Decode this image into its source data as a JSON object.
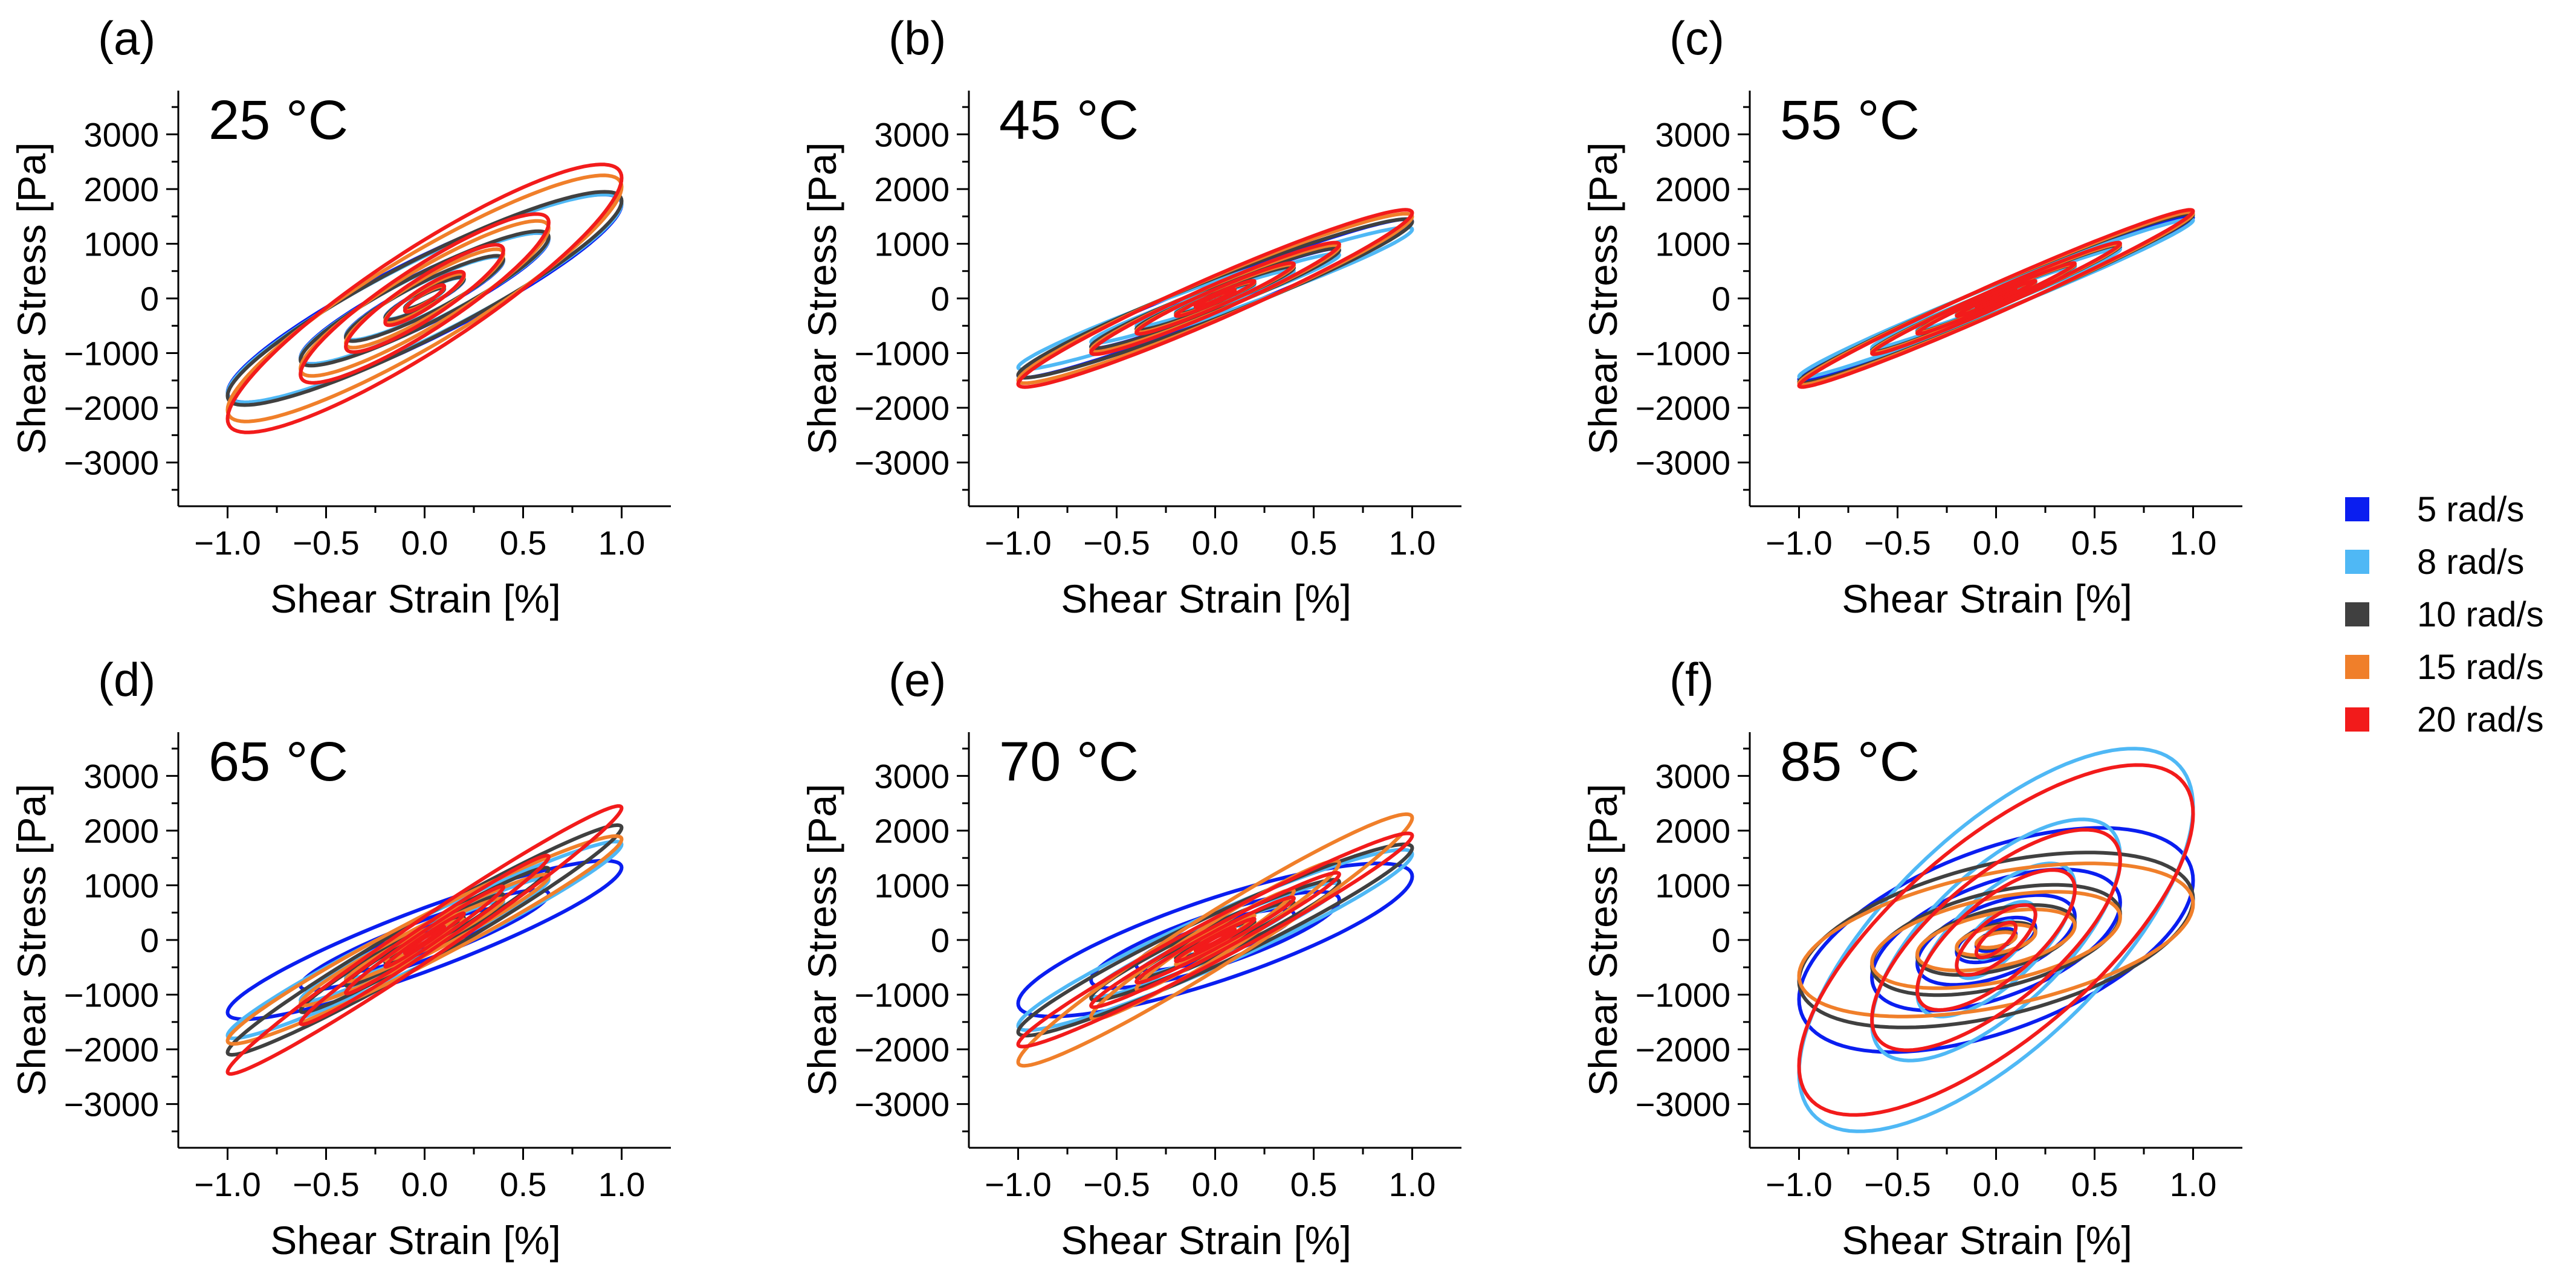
{
  "legend": {
    "items": [
      {
        "label": "5 rad/s",
        "color": "#0a1ef0"
      },
      {
        "label": "8 rad/s",
        "color": "#4fb8f5"
      },
      {
        "label": "10 rad/s",
        "color": "#404040"
      },
      {
        "label": "15 rad/s",
        "color": "#f07f2a"
      },
      {
        "label": "20 rad/s",
        "color": "#f21b1b"
      }
    ]
  },
  "chart_data": [
    {
      "type": "line",
      "panel": "(a)",
      "title": "25 °C",
      "xlabel": "Shear Strain [%]",
      "ylabel": "Shear Stress [Pa]",
      "xlim": [
        -1.25,
        1.25
      ],
      "ylim": [
        -3800,
        3800
      ],
      "xticks": [
        "-1.0",
        "-0.5",
        "0.0",
        "0.5",
        "1.0"
      ],
      "yticks": [
        "3000",
        "2000",
        "1000",
        "0",
        "-1000",
        "-2000",
        "-3000"
      ],
      "amplitudes": [
        0.1,
        0.2,
        0.4,
        0.63,
        1.0
      ],
      "series": [
        {
          "name": "5 rad/s",
          "peak_stress": 1900,
          "phase_deg": 25
        },
        {
          "name": "8 rad/s",
          "peak_stress": 1900,
          "phase_deg": 24
        },
        {
          "name": "10 rad/s",
          "peak_stress": 1950,
          "phase_deg": 24
        },
        {
          "name": "15 rad/s",
          "peak_stress": 2250,
          "phase_deg": 25
        },
        {
          "name": "20 rad/s",
          "peak_stress": 2450,
          "phase_deg": 26
        }
      ]
    },
    {
      "type": "line",
      "panel": "(b)",
      "title": "45 °C",
      "xlabel": "Shear Strain [%]",
      "ylabel": "Shear Stress [Pa]",
      "xlim": [
        -1.25,
        1.25
      ],
      "ylim": [
        -3800,
        3800
      ],
      "xticks": [
        "-1.0",
        "-0.5",
        "0.0",
        "0.5",
        "1.0"
      ],
      "yticks": [
        "3000",
        "2000",
        "1000",
        "0",
        "-1000",
        "-2000",
        "-3000"
      ],
      "amplitudes": [
        0.1,
        0.2,
        0.4,
        0.63,
        1.0
      ],
      "series": [
        {
          "name": "5 rad/s",
          "peak_stress": 1450,
          "phase_deg": 14
        },
        {
          "name": "8 rad/s",
          "peak_stress": 1300,
          "phase_deg": 14
        },
        {
          "name": "10 rad/s",
          "peak_stress": 1450,
          "phase_deg": 15
        },
        {
          "name": "15 rad/s",
          "peak_stress": 1550,
          "phase_deg": 15
        },
        {
          "name": "20 rad/s",
          "peak_stress": 1620,
          "phase_deg": 15
        }
      ]
    },
    {
      "type": "line",
      "panel": "(c)",
      "title": "55 °C",
      "xlabel": "Shear Strain [%]",
      "ylabel": "Shear Stress [Pa]",
      "xlim": [
        -1.25,
        1.25
      ],
      "ylim": [
        -3800,
        3800
      ],
      "xticks": [
        "-1.0",
        "-0.5",
        "0.0",
        "0.5",
        "1.0"
      ],
      "yticks": [
        "3000",
        "2000",
        "1000",
        "0",
        "-1000",
        "-2000",
        "-3000"
      ],
      "amplitudes": [
        0.1,
        0.2,
        0.4,
        0.63,
        1.0
      ],
      "series": [
        {
          "name": "5 rad/s",
          "peak_stress": 1500,
          "phase_deg": 10
        },
        {
          "name": "8 rad/s",
          "peak_stress": 1450,
          "phase_deg": 10
        },
        {
          "name": "10 rad/s",
          "peak_stress": 1550,
          "phase_deg": 10
        },
        {
          "name": "15 rad/s",
          "peak_stress": 1580,
          "phase_deg": 10
        },
        {
          "name": "20 rad/s",
          "peak_stress": 1620,
          "phase_deg": 10
        }
      ]
    },
    {
      "type": "line",
      "panel": "(d)",
      "title": "65 °C",
      "xlabel": "Shear Strain [%]",
      "ylabel": "Shear Stress [Pa]",
      "xlim": [
        -1.25,
        1.25
      ],
      "ylim": [
        -3800,
        3800
      ],
      "xticks": [
        "-1.0",
        "-0.5",
        "0.0",
        "0.5",
        "1.0"
      ],
      "yticks": [
        "3000",
        "2000",
        "1000",
        "0",
        "-1000",
        "-2000",
        "-3000"
      ],
      "amplitudes": [
        0.1,
        0.2,
        0.4,
        0.63,
        1.0
      ],
      "series": [
        {
          "name": "5 rad/s",
          "peak_stress": 1450,
          "phase_deg": 24
        },
        {
          "name": "8 rad/s",
          "peak_stress": 1800,
          "phase_deg": 14
        },
        {
          "name": "10 rad/s",
          "peak_stress": 2100,
          "phase_deg": 12
        },
        {
          "name": "15 rad/s",
          "peak_stress": 1900,
          "phase_deg": 14
        },
        {
          "name": "20 rad/s",
          "peak_stress": 2450,
          "phase_deg": 10
        }
      ]
    },
    {
      "type": "line",
      "panel": "(e)",
      "title": "70 °C",
      "xlabel": "Shear Strain [%]",
      "ylabel": "Shear Stress [Pa]",
      "xlim": [
        -1.25,
        1.25
      ],
      "ylim": [
        -3800,
        3800
      ],
      "xticks": [
        "-1.0",
        "-0.5",
        "0.0",
        "0.5",
        "1.0"
      ],
      "yticks": [
        "3000",
        "2000",
        "1000",
        "0",
        "-1000",
        "-2000",
        "-3000"
      ],
      "amplitudes": [
        0.1,
        0.2,
        0.4,
        0.63,
        1.0
      ],
      "series": [
        {
          "name": "5 rad/s",
          "peak_stress": 1400,
          "phase_deg": 34
        },
        {
          "name": "8 rad/s",
          "peak_stress": 1650,
          "phase_deg": 18
        },
        {
          "name": "10 rad/s",
          "peak_stress": 1750,
          "phase_deg": 16
        },
        {
          "name": "15 rad/s",
          "peak_stress": 2300,
          "phase_deg": 14
        },
        {
          "name": "20 rad/s",
          "peak_stress": 1950,
          "phase_deg": 12
        }
      ]
    },
    {
      "type": "line",
      "panel": "(f)",
      "title": "85 °C",
      "xlabel": "Shear Strain [%]",
      "ylabel": "Shear Stress [Pa]",
      "xlim": [
        -1.25,
        1.25
      ],
      "ylim": [
        -3800,
        3800
      ],
      "xticks": [
        "-1.0",
        "-0.5",
        "0.0",
        "0.5",
        "1.0"
      ],
      "yticks": [
        "3000",
        "2000",
        "1000",
        "0",
        "-1000",
        "-2000",
        "-3000"
      ],
      "amplitudes": [
        0.1,
        0.2,
        0.4,
        0.63,
        1.0
      ],
      "series": [
        {
          "name": "5 rad/s",
          "peak_stress": 2050,
          "phase_deg": 58
        },
        {
          "name": "8 rad/s",
          "peak_stress": 3500,
          "phase_deg": 46
        },
        {
          "name": "10 rad/s",
          "peak_stress": 1600,
          "phase_deg": 62
        },
        {
          "name": "15 rad/s",
          "peak_stress": 1400,
          "phase_deg": 62
        },
        {
          "name": "20 rad/s",
          "peak_stress": 3200,
          "phase_deg": 44
        }
      ]
    }
  ]
}
